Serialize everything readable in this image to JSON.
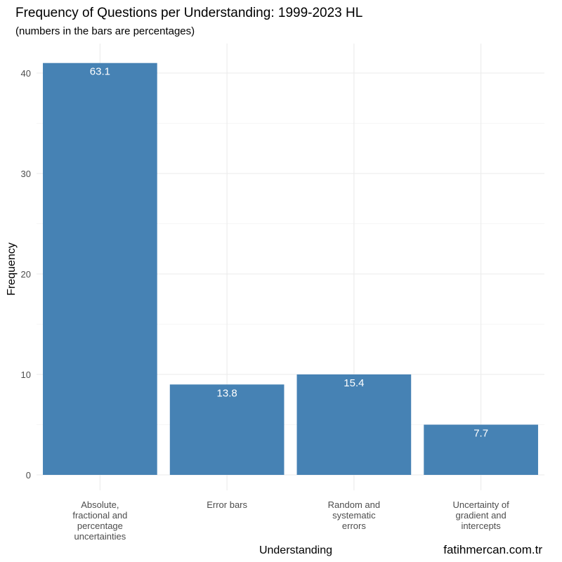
{
  "chart_data": {
    "type": "bar",
    "title": "Frequency of Questions per Understanding: 1999-2023 HL",
    "subtitle": "(numbers in the bars are percentages)",
    "xlabel": "Understanding",
    "ylabel": "Frequency",
    "categories": [
      [
        "Absolute,",
        "fractional and",
        "percentage",
        "uncertainties"
      ],
      [
        "Error bars"
      ],
      [
        "Random and",
        "systematic",
        "errors"
      ],
      [
        "Uncertainty of",
        "gradient and",
        "intercepts"
      ]
    ],
    "values": [
      41,
      9,
      10,
      5
    ],
    "bar_labels": [
      "63.1",
      "13.8",
      "15.4",
      "7.7"
    ],
    "yticks": [
      "0",
      "10",
      "20",
      "30",
      "40"
    ],
    "ylim": [
      0,
      44
    ],
    "grid": true,
    "bar_color": "#4682B4",
    "caption": "fatihmercan.com.tr"
  }
}
